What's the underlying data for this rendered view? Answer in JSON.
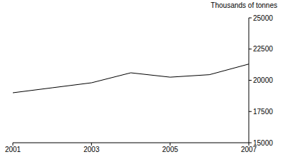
{
  "chart_data": {
    "type": "line",
    "ylabel": "Thousands of tonnes",
    "x": [
      2001,
      2002,
      2003,
      2004,
      2005,
      2006,
      2007
    ],
    "values": [
      19000,
      19400,
      19800,
      20600,
      20250,
      20450,
      21300
    ],
    "color": "#000000",
    "xlim": [
      2001,
      2007
    ],
    "xticks": [
      2001,
      2003,
      2005,
      2007
    ],
    "ylim": [
      15000,
      25000
    ],
    "yticks": [
      15000,
      17500,
      20000,
      22500,
      25000
    ],
    "grid": false
  }
}
